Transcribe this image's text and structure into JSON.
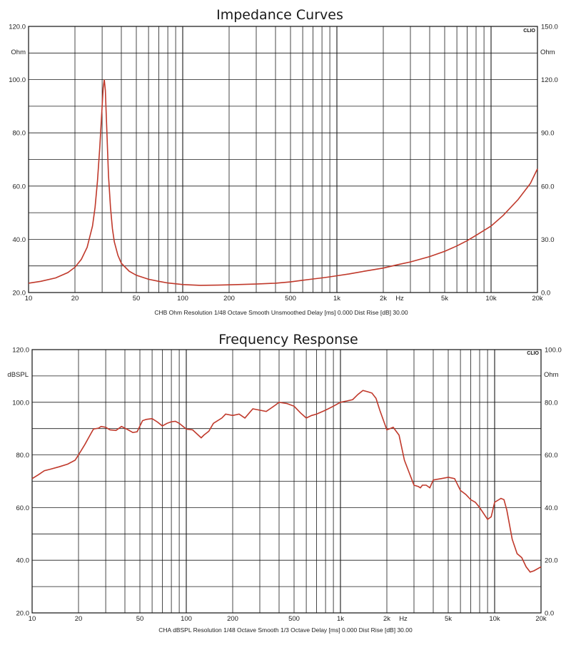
{
  "chart_data": [
    {
      "type": "line",
      "title": "Impedance Curves",
      "subtitle": "CHB Ohm Resolution 1/48 Octave Smooth Unsmoothed Delay [ms] 0.000 Dist Rise [dB] 30.00",
      "badge": "CLIO",
      "x_scale": "log",
      "xlim": [
        10,
        20000
      ],
      "x_unit_label": "Hz",
      "x_ticks": [
        {
          "value": 10,
          "label": "10"
        },
        {
          "value": 20,
          "label": "20"
        },
        {
          "value": 50,
          "label": "50"
        },
        {
          "value": 100,
          "label": "100"
        },
        {
          "value": 200,
          "label": "200"
        },
        {
          "value": 500,
          "label": "500"
        },
        {
          "value": 1000,
          "label": "1k"
        },
        {
          "value": 2000,
          "label": "2k"
        },
        {
          "value": 5000,
          "label": "5k"
        },
        {
          "value": 10000,
          "label": "10k"
        },
        {
          "value": 20000,
          "label": "20k"
        }
      ],
      "ylim": [
        20,
        120
      ],
      "y_unit_label": "Ohm",
      "y_ticks": [
        "20.0",
        "40.0",
        "60.0",
        "80.0",
        "100.0",
        "120.0"
      ],
      "y2lim": [
        0,
        150
      ],
      "y2_unit_label": "Ohm",
      "y2_ticks": [
        "0.0",
        "30.0",
        "60.0",
        "90.0",
        "120.0",
        "150.0"
      ],
      "grid": true,
      "line_color": "#c0392b",
      "series": [
        {
          "x": [
            10,
            12,
            15,
            18,
            20,
            22,
            24,
            26,
            27,
            28,
            29,
            30,
            30.5,
            31,
            31.5,
            32,
            33,
            34,
            35,
            36,
            38,
            40,
            45,
            50,
            60,
            70,
            80,
            100,
            130,
            170,
            200,
            300,
            400,
            500,
            600,
            700,
            800,
            900,
            1000,
            1200,
            1500,
            2000,
            2500,
            3000,
            4000,
            5000,
            6000,
            7000,
            8000,
            10000,
            12000,
            15000,
            18000,
            20000
          ],
          "y": [
            23.5,
            24.2,
            25.5,
            27.5,
            29.5,
            32.5,
            37,
            45,
            52,
            62,
            75,
            90,
            97,
            100,
            96,
            85,
            64,
            52,
            44,
            39,
            34,
            31,
            28,
            26.5,
            25,
            24.2,
            23.6,
            23,
            22.7,
            22.8,
            22.9,
            23.2,
            23.5,
            24,
            24.6,
            25.1,
            25.5,
            25.9,
            26.3,
            27,
            28,
            29.2,
            30.5,
            31.5,
            33.5,
            35.5,
            37.5,
            39.5,
            41.5,
            45,
            49,
            55,
            61,
            66.5
          ]
        }
      ]
    },
    {
      "type": "line",
      "title": "Frequency Response",
      "subtitle": "CHA dBSPL Resolution 1/48 Octave Smooth 1/3 Octave Delay [ms] 0.000 Dist Rise [dB] 30.00",
      "badge": "CLIO",
      "x_scale": "log",
      "xlim": [
        10,
        20000
      ],
      "x_unit_label": "Hz",
      "x_ticks": [
        {
          "value": 10,
          "label": "10"
        },
        {
          "value": 20,
          "label": "20"
        },
        {
          "value": 50,
          "label": "50"
        },
        {
          "value": 100,
          "label": "100"
        },
        {
          "value": 200,
          "label": "200"
        },
        {
          "value": 500,
          "label": "500"
        },
        {
          "value": 1000,
          "label": "1k"
        },
        {
          "value": 2000,
          "label": "2k"
        },
        {
          "value": 5000,
          "label": "5k"
        },
        {
          "value": 10000,
          "label": "10k"
        },
        {
          "value": 20000,
          "label": "20k"
        }
      ],
      "ylim": [
        20,
        120
      ],
      "y_unit_label": "dBSPL",
      "y_ticks": [
        "20.0",
        "40.0",
        "60.0",
        "80.0",
        "100.0",
        "120.0"
      ],
      "y2lim": [
        0,
        100
      ],
      "y2_unit_label": "Ohm",
      "y2_ticks": [
        "0.0",
        "20.0",
        "40.0",
        "60.0",
        "80.0",
        "100.0"
      ],
      "grid": true,
      "line_color": "#c0392b",
      "series": [
        {
          "x": [
            10,
            11,
            12,
            13,
            15,
            17,
            19,
            20,
            22,
            24,
            25,
            27,
            28,
            30,
            32,
            35,
            38,
            42,
            45,
            48,
            52,
            55,
            60,
            65,
            70,
            75,
            80,
            85,
            90,
            100,
            110,
            125,
            130,
            140,
            150,
            170,
            180,
            200,
            220,
            240,
            270,
            300,
            330,
            380,
            400,
            450,
            500,
            550,
            600,
            650,
            700,
            800,
            900,
            1000,
            1100,
            1200,
            1300,
            1400,
            1500,
            1600,
            1700,
            1800,
            2000,
            2200,
            2400,
            2600,
            3000,
            3200,
            3300,
            3400,
            3600,
            3800,
            4000,
            4500,
            5000,
            5500,
            6000,
            6500,
            7000,
            7500,
            8000,
            9000,
            9500,
            10000,
            11000,
            11500,
            12000,
            13000,
            14000,
            15000,
            16000,
            17000,
            18000,
            20000
          ],
          "y": [
            71,
            72.5,
            74,
            74.5,
            75.5,
            76.5,
            78,
            80,
            84,
            88,
            89.8,
            90.2,
            90.8,
            90.5,
            89.5,
            89.3,
            90.8,
            89.5,
            88.5,
            88.8,
            93,
            93.5,
            93.8,
            92.5,
            91,
            92,
            92.6,
            92.8,
            92,
            89.8,
            89.5,
            86.5,
            87.5,
            89,
            92,
            94,
            95.5,
            95,
            95.5,
            94,
            97.5,
            97,
            96.5,
            99,
            100,
            99.5,
            98.5,
            96,
            94,
            95,
            95.5,
            97,
            98.5,
            100,
            100.5,
            101,
            103,
            104.5,
            104,
            103.5,
            101.5,
            97,
            89.5,
            90.5,
            87.5,
            78,
            68.5,
            68,
            67.5,
            68.5,
            68.5,
            67.5,
            70.5,
            71,
            71.5,
            71,
            66.5,
            65,
            63,
            62,
            60,
            55.5,
            56.5,
            62,
            63.5,
            63,
            59,
            48,
            42.5,
            41,
            37.5,
            35.5,
            36,
            37.5
          ]
        }
      ]
    }
  ]
}
